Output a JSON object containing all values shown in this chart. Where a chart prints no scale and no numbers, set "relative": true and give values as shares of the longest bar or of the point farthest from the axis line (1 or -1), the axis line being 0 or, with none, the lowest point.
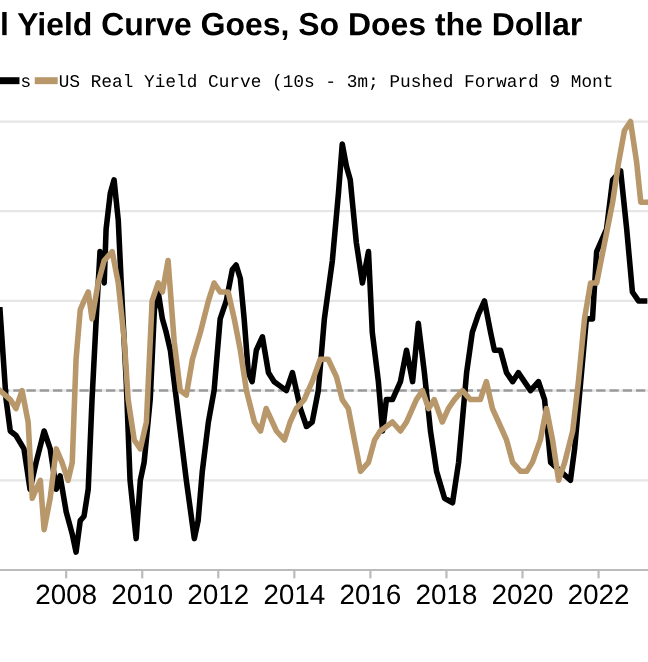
{
  "chart_data": {
    "type": "line",
    "title": "l Yield Curve Goes, So Does the Dollar",
    "relative": true,
    "grid": "y",
    "legend": "top left",
    "line_style": "solid",
    "marker": "none",
    "xlim": [
      2006.26,
      2023.3
    ],
    "xticks": [
      2008,
      2010,
      2012,
      2014,
      2016,
      2018,
      2020,
      2022
    ],
    "ref_lines": [
      {
        "axis": "y",
        "value": 0.4,
        "label": null,
        "color": "#9a9a9a",
        "line_style": "dashed"
      }
    ],
    "series": [
      {
        "name": "s",
        "color": "#000000",
        "x": [
          2006.26,
          2006.42,
          2006.53,
          2006.68,
          2006.89,
          2007.05,
          2007.21,
          2007.42,
          2007.58,
          2007.74,
          2007.84,
          2008.0,
          2008.16,
          2008.26,
          2008.37,
          2008.47,
          2008.58,
          2008.68,
          2008.79,
          2008.89,
          2009.0,
          2009.05,
          2009.16,
          2009.26,
          2009.37,
          2009.47,
          2009.58,
          2009.68,
          2009.84,
          2009.95,
          2010.05,
          2010.21,
          2010.32,
          2010.42,
          2010.53,
          2010.63,
          2010.74,
          2010.84,
          2011.0,
          2011.16,
          2011.37,
          2011.47,
          2011.58,
          2011.74,
          2011.89,
          2012.05,
          2012.21,
          2012.37,
          2012.47,
          2012.58,
          2012.68,
          2012.79,
          2012.89,
          2013.0,
          2013.16,
          2013.32,
          2013.47,
          2013.63,
          2013.79,
          2013.95,
          2014.16,
          2014.32,
          2014.47,
          2014.63,
          2014.79,
          2015.0,
          2015.16,
          2015.26,
          2015.37,
          2015.47,
          2015.63,
          2015.79,
          2015.95,
          2016.05,
          2016.21,
          2016.32,
          2016.42,
          2016.58,
          2016.79,
          2016.95,
          2017.11,
          2017.26,
          2017.42,
          2017.58,
          2017.74,
          2017.95,
          2018.16,
          2018.32,
          2018.53,
          2018.68,
          2018.84,
          2019.0,
          2019.16,
          2019.26,
          2019.42,
          2019.58,
          2019.74,
          2019.89,
          2020.05,
          2020.21,
          2020.42,
          2020.58,
          2020.74,
          2021.0,
          2021.26,
          2021.37,
          2021.53,
          2021.68,
          2021.84,
          2021.95,
          2022.21,
          2022.37,
          2022.58,
          2022.74,
          2022.89,
          2023.05,
          2023.21
        ],
        "values": [
          0.58,
          0.38,
          0.31,
          0.3,
          0.27,
          0.18,
          0.24,
          0.31,
          0.27,
          0.18,
          0.21,
          0.13,
          0.08,
          0.04,
          0.11,
          0.12,
          0.18,
          0.38,
          0.56,
          0.71,
          0.64,
          0.76,
          0.84,
          0.87,
          0.78,
          0.6,
          0.42,
          0.2,
          0.07,
          0.2,
          0.24,
          0.38,
          0.58,
          0.62,
          0.56,
          0.53,
          0.49,
          0.42,
          0.31,
          0.2,
          0.07,
          0.11,
          0.22,
          0.33,
          0.4,
          0.56,
          0.6,
          0.67,
          0.68,
          0.65,
          0.56,
          0.44,
          0.42,
          0.49,
          0.52,
          0.44,
          0.42,
          0.41,
          0.4,
          0.44,
          0.36,
          0.32,
          0.33,
          0.4,
          0.56,
          0.69,
          0.84,
          0.95,
          0.9,
          0.87,
          0.73,
          0.64,
          0.71,
          0.53,
          0.42,
          0.31,
          0.38,
          0.38,
          0.42,
          0.49,
          0.42,
          0.55,
          0.44,
          0.31,
          0.22,
          0.16,
          0.15,
          0.24,
          0.44,
          0.53,
          0.57,
          0.6,
          0.53,
          0.49,
          0.49,
          0.44,
          0.42,
          0.44,
          0.42,
          0.4,
          0.42,
          0.38,
          0.24,
          0.22,
          0.2,
          0.27,
          0.42,
          0.56,
          0.56,
          0.71,
          0.76,
          0.87,
          0.89,
          0.76,
          0.62,
          0.6,
          0.6
        ]
      },
      {
        "name": "US Real Yield Curve (10s - 3m; Pushed Forward 9 Mont",
        "color": "#b8976a",
        "x": [
          2006.26,
          2006.53,
          2006.68,
          2006.84,
          2007.0,
          2007.11,
          2007.21,
          2007.32,
          2007.42,
          2007.58,
          2007.74,
          2007.89,
          2008.05,
          2008.16,
          2008.26,
          2008.37,
          2008.47,
          2008.58,
          2008.68,
          2008.84,
          2009.0,
          2009.21,
          2009.37,
          2009.53,
          2009.63,
          2009.79,
          2009.95,
          2010.11,
          2010.26,
          2010.42,
          2010.53,
          2010.68,
          2010.84,
          2011.0,
          2011.16,
          2011.32,
          2011.53,
          2011.74,
          2011.89,
          2012.05,
          2012.26,
          2012.42,
          2012.58,
          2012.74,
          2012.95,
          2013.11,
          2013.26,
          2013.53,
          2013.74,
          2013.89,
          2014.05,
          2014.26,
          2014.47,
          2014.68,
          2014.89,
          2015.11,
          2015.26,
          2015.42,
          2015.58,
          2015.74,
          2015.95,
          2016.11,
          2016.26,
          2016.42,
          2016.58,
          2016.79,
          2016.95,
          2017.21,
          2017.37,
          2017.53,
          2017.68,
          2017.89,
          2018.05,
          2018.21,
          2018.42,
          2018.63,
          2018.89,
          2019.05,
          2019.21,
          2019.37,
          2019.58,
          2019.74,
          2019.95,
          2020.11,
          2020.26,
          2020.47,
          2020.63,
          2020.79,
          2020.95,
          2021.11,
          2021.32,
          2021.47,
          2021.63,
          2021.79,
          2021.95,
          2022.16,
          2022.37,
          2022.53,
          2022.68,
          2022.84,
          2023.0,
          2023.11,
          2023.26
        ],
        "values": [
          0.4,
          0.38,
          0.36,
          0.4,
          0.33,
          0.16,
          0.18,
          0.2,
          0.09,
          0.16,
          0.27,
          0.24,
          0.2,
          0.24,
          0.47,
          0.58,
          0.6,
          0.62,
          0.56,
          0.64,
          0.69,
          0.71,
          0.64,
          0.51,
          0.38,
          0.29,
          0.27,
          0.33,
          0.6,
          0.64,
          0.62,
          0.69,
          0.51,
          0.4,
          0.39,
          0.47,
          0.53,
          0.6,
          0.64,
          0.62,
          0.62,
          0.56,
          0.49,
          0.4,
          0.33,
          0.31,
          0.36,
          0.31,
          0.29,
          0.33,
          0.36,
          0.38,
          0.42,
          0.47,
          0.47,
          0.43,
          0.38,
          0.36,
          0.29,
          0.22,
          0.24,
          0.29,
          0.31,
          0.32,
          0.33,
          0.31,
          0.33,
          0.38,
          0.4,
          0.36,
          0.38,
          0.33,
          0.36,
          0.38,
          0.4,
          0.38,
          0.38,
          0.42,
          0.36,
          0.33,
          0.29,
          0.24,
          0.22,
          0.22,
          0.24,
          0.29,
          0.36,
          0.29,
          0.2,
          0.24,
          0.31,
          0.42,
          0.56,
          0.64,
          0.64,
          0.73,
          0.82,
          0.91,
          0.98,
          1.0,
          0.91,
          0.82,
          0.82
        ]
      }
    ]
  }
}
